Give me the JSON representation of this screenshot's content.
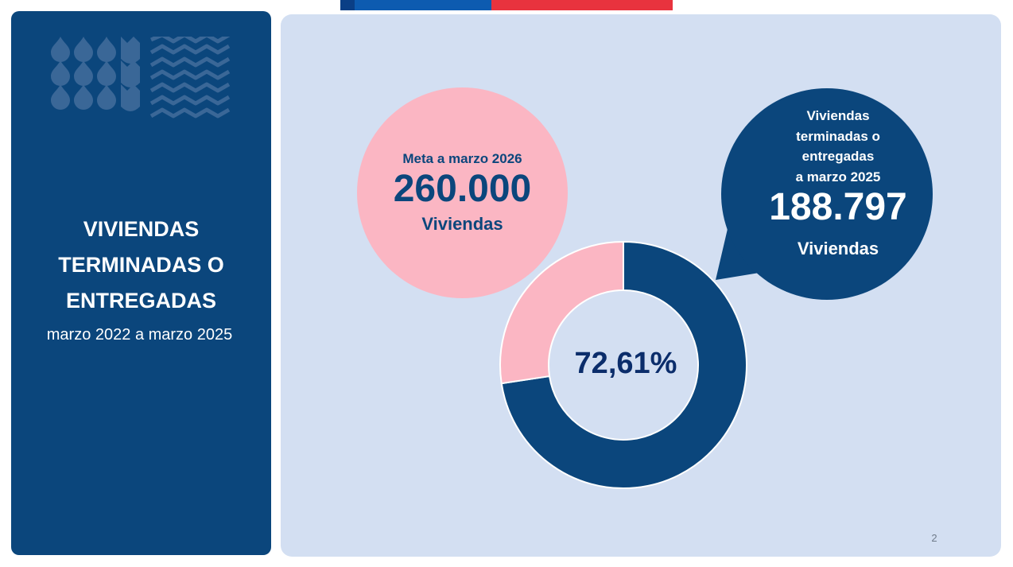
{
  "colors": {
    "navy": "#0b467c",
    "pink": "#fbb6c3",
    "panel_bg": "#d3dff2",
    "flag_blue": "#0d5bb0",
    "flag_red": "#e8333e"
  },
  "sidebar": {
    "title_lines": [
      "VIVIENDAS",
      "TERMINADAS O",
      "ENTREGADAS"
    ],
    "subtitle": "marzo 2022 a marzo 2025",
    "pattern_icon": "drops-and-waves-pattern"
  },
  "goal": {
    "label": "Meta a marzo 2026",
    "value": "260.000",
    "unit": "Viviendas"
  },
  "delivered": {
    "label_lines": [
      "Viviendas",
      "terminadas o",
      "entregadas",
      "a marzo 2025"
    ],
    "value": "188.797",
    "unit": "Viviendas"
  },
  "chart_data": {
    "type": "pie",
    "donut": true,
    "center_label": "72,61%",
    "series": [
      {
        "value": 72.61,
        "color": "#0b467c"
      },
      {
        "value": 27.39,
        "color": "#fbb6c3"
      }
    ]
  },
  "page_number": "2"
}
